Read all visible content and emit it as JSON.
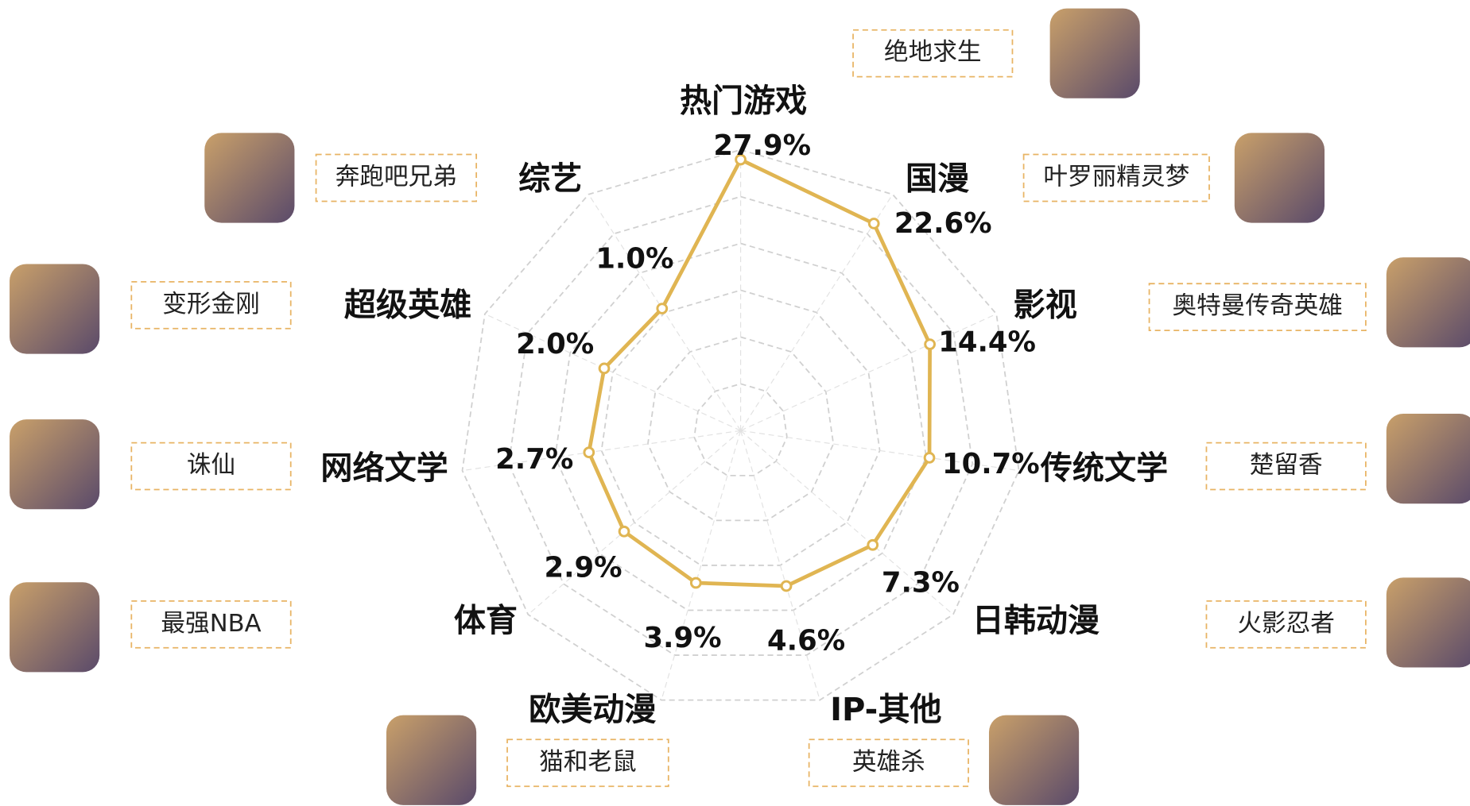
{
  "chart_data": {
    "type": "radar",
    "categories": [
      "热门游戏",
      "国漫",
      "影视",
      "传统文学",
      "日韩动漫",
      "IP-其他",
      "欧美动漫",
      "体育",
      "网络文学",
      "超级英雄",
      "综艺"
    ],
    "values": [
      27.9,
      22.6,
      14.4,
      10.7,
      7.3,
      4.6,
      3.9,
      2.9,
      2.7,
      2.0,
      1.0
    ],
    "value_labels": [
      "27.9%",
      "22.6%",
      "14.4%",
      "10.7%",
      "7.3%",
      "4.6%",
      "3.9%",
      "2.9%",
      "2.7%",
      "2.0%",
      "1.0%"
    ],
    "color": "#e0b552",
    "rlim": [
      -30,
      30
    ],
    "rticks": [
      -20,
      -10,
      0,
      10,
      20,
      30
    ],
    "grid": true,
    "annotations": [
      "绝地求生",
      "叶罗丽精灵梦",
      "奥特曼传奇英雄",
      "楚留香",
      "火影忍者",
      "英雄杀",
      "猫和老鼠",
      "最强NBA",
      "诛仙",
      "变形金刚",
      "奔跑吧兄弟"
    ]
  }
}
